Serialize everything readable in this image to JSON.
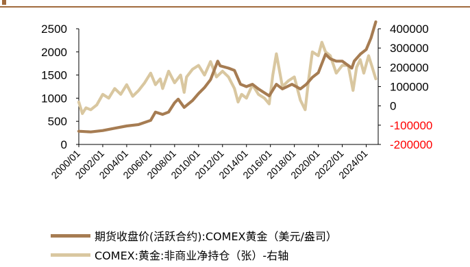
{
  "chart_data": {
    "type": "line",
    "title": "",
    "x_ticks": [
      "2000/01",
      "2002/01",
      "2004/01",
      "2006/01",
      "2008/01",
      "2010/01",
      "2012/01",
      "2014/01",
      "2016/01",
      "2018/01",
      "2020/01",
      "2022/01",
      "2024/01"
    ],
    "xlim": [
      "2000/01",
      "2024/12"
    ],
    "y_left": {
      "lim": [
        0,
        2500
      ],
      "ticks": [
        "0",
        "500",
        "1000",
        "1500",
        "2000",
        "2500"
      ]
    },
    "y_right": {
      "lim": [
        -200000,
        400000
      ],
      "ticks": [
        "-200000",
        "-100000",
        "0",
        "100000",
        "200000",
        "300000",
        "400000"
      ],
      "negative_tick_color": "#ff0000"
    },
    "grid": false,
    "legend_position": "bottom",
    "series": [
      {
        "name": "期货收盘价(活跃合约):COMEX黄金（美元/盎司）",
        "axis": "left",
        "color": "#a67c52",
        "x": [
          2000.0,
          2001.0,
          2002.0,
          2003.0,
          2004.0,
          2005.0,
          2006.0,
          2006.4,
          2007.0,
          2007.5,
          2008.0,
          2008.3,
          2008.8,
          2009.5,
          2010.0,
          2010.5,
          2011.0,
          2011.6,
          2011.8,
          2012.5,
          2013.0,
          2013.5,
          2014.0,
          2014.5,
          2015.0,
          2015.9,
          2016.5,
          2017.0,
          2017.8,
          2018.5,
          2019.0,
          2019.5,
          2020.0,
          2020.6,
          2021.0,
          2021.5,
          2022.0,
          2022.8,
          2023.0,
          2023.5,
          2024.0,
          2024.4,
          2024.8
        ],
        "values": [
          285,
          270,
          300,
          350,
          400,
          430,
          520,
          700,
          650,
          700,
          900,
          980,
          800,
          950,
          1100,
          1230,
          1400,
          1800,
          1700,
          1650,
          1600,
          1300,
          1250,
          1300,
          1200,
          1050,
          1300,
          1200,
          1300,
          1200,
          1300,
          1450,
          1550,
          1950,
          1850,
          1800,
          1800,
          1650,
          1800,
          1950,
          2050,
          2300,
          2650
        ]
      },
      {
        "name": "COMEX:黄金:非商业净持仓（张）-右轴",
        "axis": "right",
        "color": "#d9c7a0",
        "x": [
          2000.0,
          2000.3,
          2000.6,
          2001.0,
          2001.5,
          2002.0,
          2002.5,
          2003.0,
          2003.5,
          2004.0,
          2004.5,
          2005.0,
          2005.5,
          2006.0,
          2006.4,
          2006.8,
          2007.0,
          2007.5,
          2008.0,
          2008.5,
          2008.8,
          2009.0,
          2009.5,
          2010.0,
          2010.5,
          2011.0,
          2011.5,
          2012.0,
          2012.5,
          2013.0,
          2013.3,
          2013.6,
          2014.0,
          2014.5,
          2015.0,
          2015.5,
          2015.9,
          2016.2,
          2016.5,
          2017.0,
          2017.5,
          2018.0,
          2018.5,
          2018.9,
          2019.2,
          2019.5,
          2020.0,
          2020.3,
          2020.6,
          2021.0,
          2021.5,
          2022.0,
          2022.5,
          2022.9,
          2023.2,
          2023.5,
          2023.8,
          2024.2,
          2024.5,
          2024.8
        ],
        "values": [
          20000,
          -40000,
          -10000,
          -20000,
          5000,
          60000,
          40000,
          90000,
          60000,
          110000,
          50000,
          80000,
          120000,
          170000,
          110000,
          140000,
          90000,
          180000,
          120000,
          160000,
          70000,
          150000,
          190000,
          210000,
          160000,
          230000,
          150000,
          180000,
          150000,
          90000,
          20000,
          60000,
          40000,
          110000,
          60000,
          40000,
          10000,
          160000,
          270000,
          100000,
          130000,
          150000,
          30000,
          -20000,
          140000,
          280000,
          260000,
          330000,
          280000,
          260000,
          170000,
          210000,
          210000,
          80000,
          200000,
          240000,
          170000,
          260000,
          200000,
          140000
        ]
      }
    ]
  }
}
